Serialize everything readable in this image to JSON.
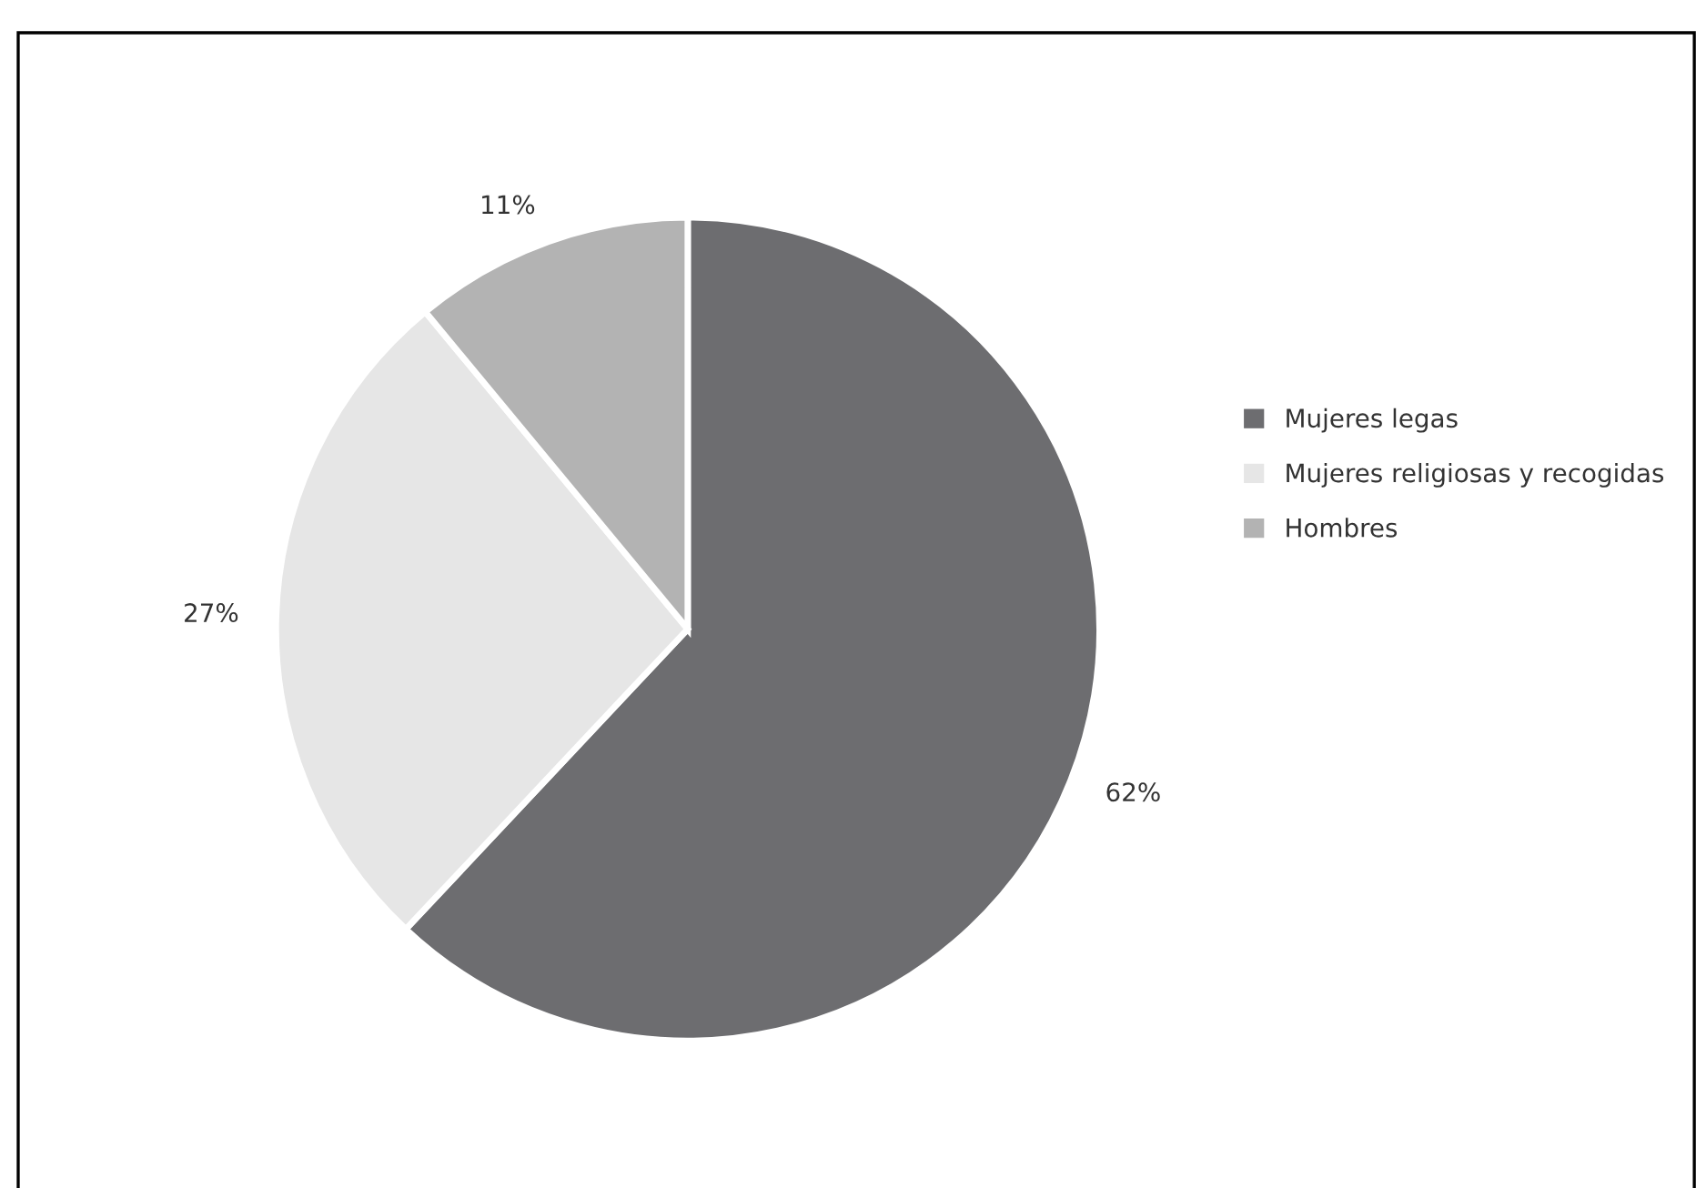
{
  "chart_data": {
    "type": "pie",
    "categories": [
      "Mujeres legas",
      "Mujeres religiosas y recogidas",
      "Hombres"
    ],
    "values": [
      62,
      27,
      11
    ],
    "colors": [
      "#6d6d70",
      "#e6e6e6",
      "#b3b3b3"
    ],
    "value_labels": [
      "62%",
      "27%",
      "11%"
    ],
    "legend": "right"
  }
}
